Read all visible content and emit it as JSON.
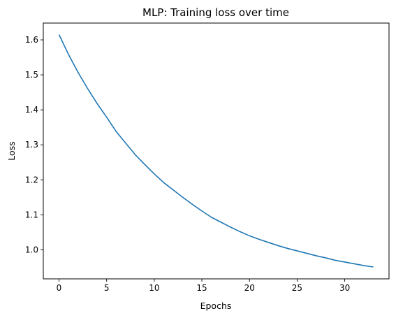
{
  "chart_data": {
    "type": "line",
    "title": "MLP: Training loss over time",
    "xlabel": "Epochs",
    "ylabel": "Loss",
    "xlim": [
      -1.65,
      34.65
    ],
    "ylim": [
      0.917,
      1.648
    ],
    "xticks": [
      0,
      5,
      10,
      15,
      20,
      25,
      30
    ],
    "xtick_labels": [
      "0",
      "5",
      "10",
      "15",
      "20",
      "25",
      "30"
    ],
    "yticks": [
      1.0,
      1.1,
      1.2,
      1.3,
      1.4,
      1.5,
      1.6
    ],
    "ytick_labels": [
      "1.0",
      "1.1",
      "1.2",
      "1.3",
      "1.4",
      "1.5",
      "1.6"
    ],
    "grid": false,
    "legend": "none",
    "series": [
      {
        "color": "#1f77b4",
        "x": [
          0,
          1,
          2,
          3,
          4,
          5,
          6,
          7,
          8,
          9,
          10,
          11,
          12,
          13,
          14,
          15,
          16,
          17,
          18,
          19,
          20,
          21,
          22,
          23,
          24,
          25,
          26,
          27,
          28,
          29,
          30,
          31,
          32,
          33
        ],
        "y": [
          1.615,
          1.558,
          1.507,
          1.461,
          1.418,
          1.379,
          1.338,
          1.305,
          1.272,
          1.244,
          1.217,
          1.192,
          1.171,
          1.15,
          1.13,
          1.111,
          1.093,
          1.079,
          1.065,
          1.052,
          1.04,
          1.03,
          1.021,
          1.012,
          1.004,
          0.997,
          0.99,
          0.983,
          0.977,
          0.97,
          0.965,
          0.96,
          0.955,
          0.951
        ]
      }
    ]
  }
}
